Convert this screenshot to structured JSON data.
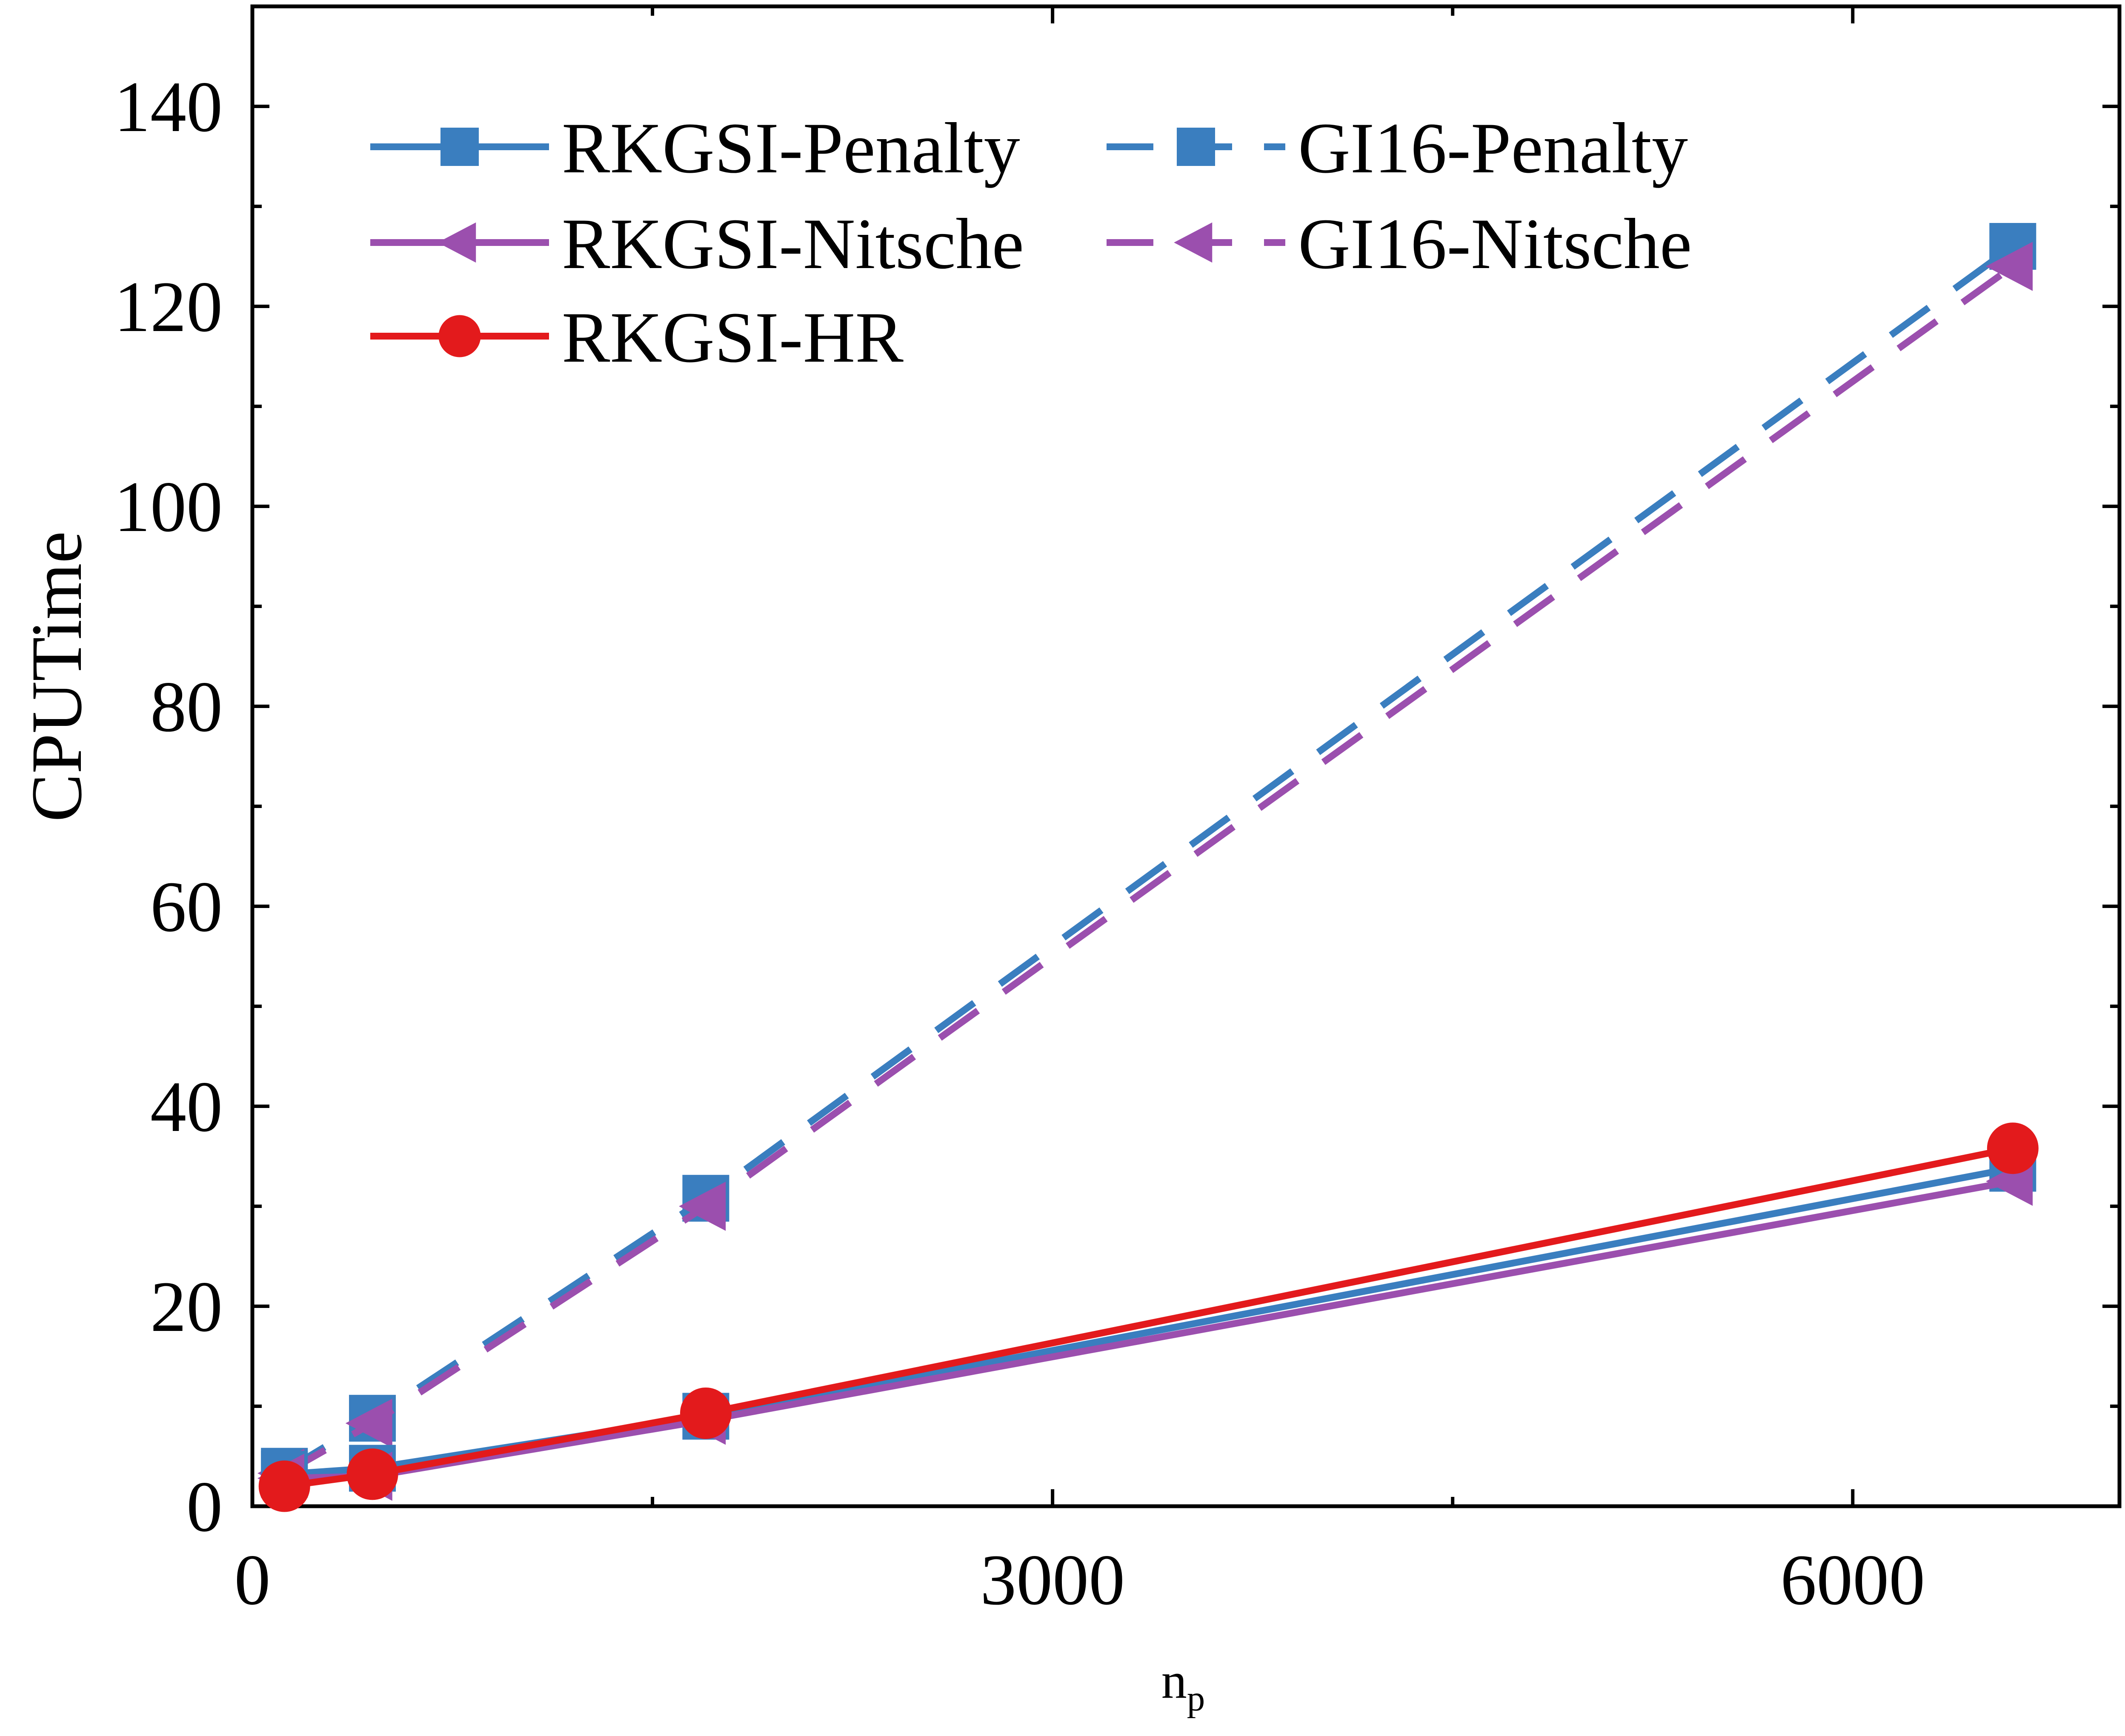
{
  "chart_data": {
    "type": "line",
    "xlabel": "n",
    "xlabel_subscript": "p",
    "ylabel": "CPUTime",
    "xlim": [
      0,
      7000
    ],
    "ylim": [
      0,
      150
    ],
    "x_ticks": [
      0,
      3000,
      6000
    ],
    "y_ticks": [
      0,
      20,
      40,
      60,
      80,
      100,
      120,
      140
    ],
    "x_tick_labels": [
      "0",
      "3000",
      "6000"
    ],
    "y_tick_labels": [
      "0",
      "20",
      "40",
      "60",
      "80",
      "100",
      "120",
      "140"
    ],
    "grid": false,
    "legend_position": "top-left",
    "series": [
      {
        "name": "RKGSI-Penalty",
        "x": [
          120,
          450,
          1700,
          6600
        ],
        "values": [
          3.2,
          3.8,
          9.0,
          33.8
        ],
        "color": "#3a7ebf",
        "line": "solid",
        "marker": "square"
      },
      {
        "name": "GI16-Penalty",
        "x": [
          120,
          450,
          1700,
          6600
        ],
        "values": [
          3.5,
          8.8,
          30.8,
          126.0
        ],
        "color": "#3a7ebf",
        "line": "dashed",
        "marker": "square"
      },
      {
        "name": "RKGSI-Nitsche",
        "x": [
          120,
          450,
          1700,
          6600
        ],
        "values": [
          2.8,
          3.0,
          8.6,
          32.5
        ],
        "color": "#9b4fae",
        "line": "solid",
        "marker": "triangle-left"
      },
      {
        "name": "GI16-Nitsche",
        "x": [
          120,
          450,
          1700,
          6600
        ],
        "values": [
          3.3,
          8.3,
          30.0,
          124.0
        ],
        "color": "#9b4fae",
        "line": "dashed",
        "marker": "triangle-left"
      },
      {
        "name": "RKGSI-HR",
        "x": [
          120,
          450,
          1700,
          6600
        ],
        "values": [
          2.0,
          3.2,
          9.3,
          35.8
        ],
        "color": "#e31a1c",
        "line": "solid",
        "marker": "circle"
      }
    ]
  }
}
